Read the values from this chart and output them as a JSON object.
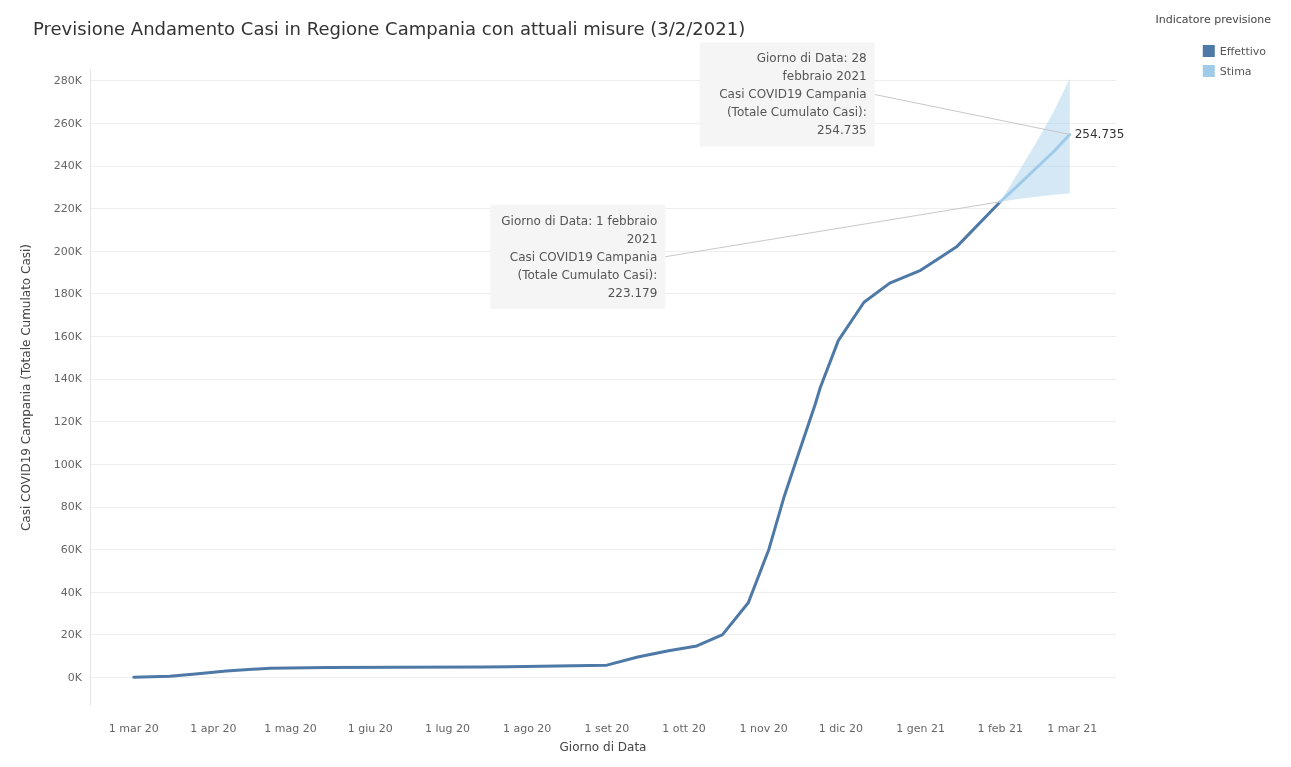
{
  "chart_data": {
    "type": "line",
    "title": "Previsione Andamento Casi in Regione Campania con attuali misure (3/2/2021)",
    "xlabel": "Giorno di Data",
    "ylabel": "Casi COVID19 Campania (Totale Cumulato Casi)",
    "legend_title": "Indicatore previsione",
    "legend": "top right",
    "grid": "y",
    "marker": "none",
    "line_style": "solid",
    "xlim": [
      "2020-02-13",
      "2021-03-18"
    ],
    "xticks": [
      {
        "value": "2020-03-01",
        "label": "1 mar 20"
      },
      {
        "value": "2020-04-01",
        "label": "1 apr 20"
      },
      {
        "value": "2020-05-01",
        "label": "1 mag 20"
      },
      {
        "value": "2020-06-01",
        "label": "1 giu 20"
      },
      {
        "value": "2020-07-01",
        "label": "1 lug 20"
      },
      {
        "value": "2020-08-01",
        "label": "1 ago 20"
      },
      {
        "value": "2020-09-01",
        "label": "1 set 20"
      },
      {
        "value": "2020-10-01",
        "label": "1 ott 20"
      },
      {
        "value": "2020-11-01",
        "label": "1 nov 20"
      },
      {
        "value": "2020-12-01",
        "label": "1 dic 20"
      },
      {
        "value": "2021-01-01",
        "label": "1 gen 21"
      },
      {
        "value": "2021-02-01",
        "label": "1 feb 21"
      },
      {
        "value": "2021-03-01",
        "label": "1 mar 21"
      }
    ],
    "ylim": [
      -13000,
      285000
    ],
    "yticks": [
      {
        "value": 0,
        "label": "0K"
      },
      {
        "value": 20000,
        "label": "20K"
      },
      {
        "value": 40000,
        "label": "40K"
      },
      {
        "value": 60000,
        "label": "60K"
      },
      {
        "value": 80000,
        "label": "80K"
      },
      {
        "value": 100000,
        "label": "100K"
      },
      {
        "value": 120000,
        "label": "120K"
      },
      {
        "value": 140000,
        "label": "140K"
      },
      {
        "value": 160000,
        "label": "160K"
      },
      {
        "value": 180000,
        "label": "180K"
      },
      {
        "value": 200000,
        "label": "200K"
      },
      {
        "value": 220000,
        "label": "220K"
      },
      {
        "value": 240000,
        "label": "240K"
      },
      {
        "value": 260000,
        "label": "260K"
      },
      {
        "value": 280000,
        "label": "280K"
      }
    ],
    "series": [
      {
        "name": "Effettivo",
        "color": "#4e79a7",
        "x": [
          "2020-03-01",
          "2020-03-15",
          "2020-03-25",
          "2020-04-06",
          "2020-04-23",
          "2020-05-15",
          "2020-06-12",
          "2020-07-15",
          "2020-08-19",
          "2020-09-01",
          "2020-09-13",
          "2020-09-25",
          "2020-10-06",
          "2020-10-16",
          "2020-10-26",
          "2020-11-03",
          "2020-11-09",
          "2020-11-14",
          "2020-11-21",
          "2020-11-23",
          "2020-11-30",
          "2020-12-10",
          "2020-12-20",
          "2021-01-01",
          "2021-01-15",
          "2021-02-01"
        ],
        "values": [
          0,
          500,
          1500,
          3000,
          4300,
          4600,
          4700,
          4800,
          5400,
          5700,
          9500,
          12500,
          14700,
          20000,
          35000,
          60000,
          85000,
          103000,
          128000,
          136000,
          158000,
          176000,
          185000,
          191000,
          202000,
          223179
        ]
      },
      {
        "name": "Stima",
        "color": "#a0cbe8",
        "x": [
          "2021-02-01",
          "2021-02-08",
          "2021-02-15",
          "2021-02-22",
          "2021-02-28"
        ],
        "values": [
          223179,
          231000,
          239000,
          247000,
          254735
        ],
        "lower": [
          223179,
          224500,
          225500,
          226500,
          227000
        ],
        "upper": [
          223179,
          237000,
          251000,
          266000,
          281000
        ],
        "value_labels": [
          null,
          null,
          null,
          null,
          "254.735"
        ]
      }
    ],
    "annotations": [
      {
        "text": "Giorno di Data: 28\nfebbraio 2021\nCasi COVID19 Campania\n(Totale Cumulato Casi):\n254.735",
        "x": "2021-02-28",
        "y": 254735
      },
      {
        "text": "Giorno di Data: 1 febbraio\n2021\nCasi COVID19 Campania\n(Totale Cumulato Casi):\n223.179",
        "x": "2021-02-01",
        "y": 223179
      }
    ]
  }
}
